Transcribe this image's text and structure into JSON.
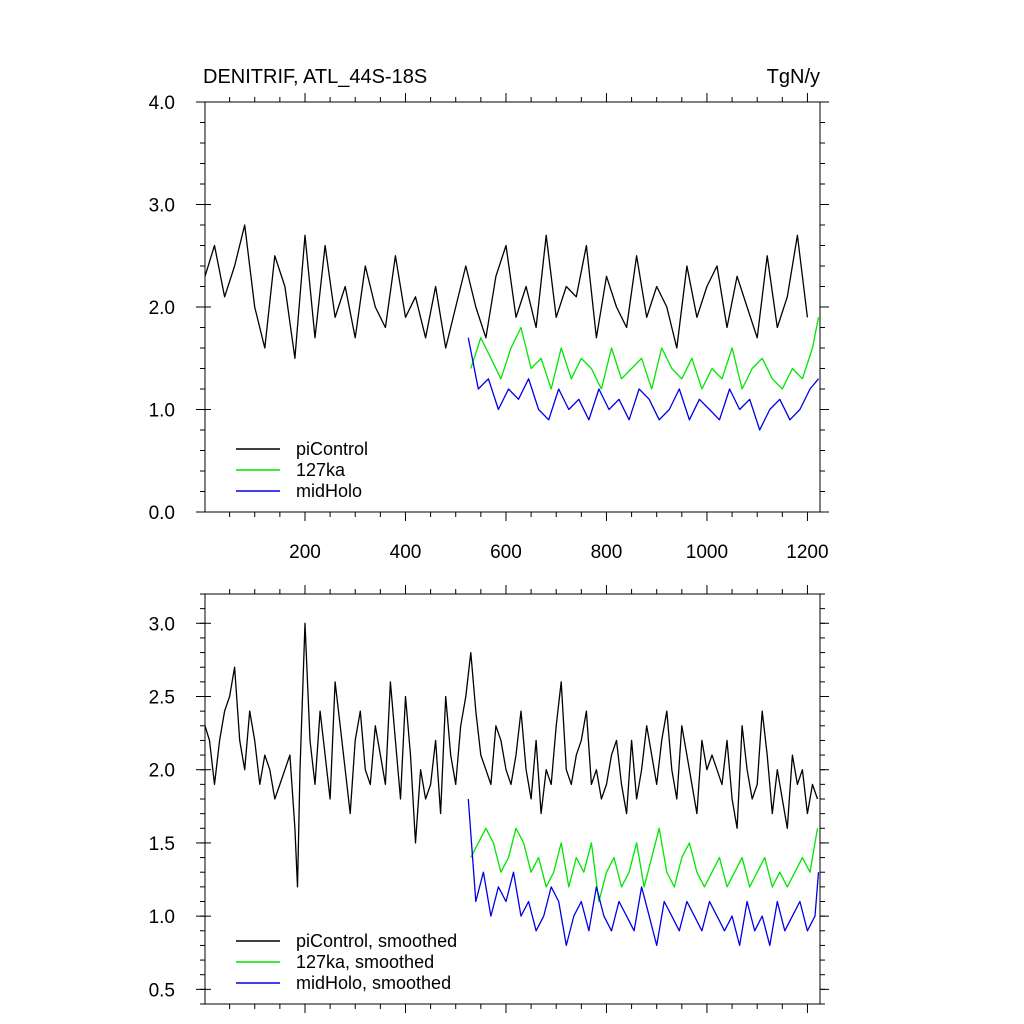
{
  "chart_data": [
    {
      "type": "line",
      "title": "DENITRIF, ATL_44S-18S",
      "units": "TgN/y",
      "xlim": [
        1,
        1225
      ],
      "ylim": [
        0,
        4
      ],
      "x_ticks": [
        200,
        400,
        600,
        800,
        1000,
        1200
      ],
      "x_tick_labels": [
        "200",
        "400",
        "600",
        "800",
        "1000",
        "1200"
      ],
      "y_ticks": [
        0,
        1,
        2,
        3,
        4
      ],
      "y_tick_labels": [
        "0.0",
        "1.0",
        "2.0",
        "3.0",
        "4.0"
      ],
      "legend_position": "bottom-left",
      "series": [
        {
          "name": "piControl",
          "color": "#000000",
          "x": [
            1,
            20,
            40,
            60,
            80,
            100,
            120,
            140,
            160,
            180,
            200,
            220,
            240,
            260,
            280,
            300,
            320,
            340,
            360,
            380,
            400,
            420,
            440,
            460,
            480,
            500,
            520,
            540,
            560,
            580,
            600,
            620,
            640,
            660,
            680,
            700,
            720,
            740,
            760,
            780,
            800,
            820,
            840,
            860,
            880,
            900,
            920,
            940,
            960,
            980,
            1000,
            1020,
            1040,
            1060,
            1080,
            1100,
            1120,
            1140,
            1160,
            1180,
            1200
          ],
          "y": [
            2.3,
            2.6,
            2.1,
            2.4,
            2.8,
            2.0,
            1.6,
            2.5,
            2.2,
            1.5,
            2.7,
            1.7,
            2.6,
            1.9,
            2.2,
            1.7,
            2.4,
            2.0,
            1.8,
            2.5,
            1.9,
            2.1,
            1.7,
            2.2,
            1.6,
            2.0,
            2.4,
            2.0,
            1.7,
            2.3,
            2.6,
            1.9,
            2.2,
            1.8,
            2.7,
            1.9,
            2.2,
            2.1,
            2.6,
            1.7,
            2.3,
            2.0,
            1.8,
            2.5,
            1.9,
            2.2,
            2.0,
            1.6,
            2.4,
            1.9,
            2.2,
            2.4,
            1.8,
            2.3,
            2.0,
            1.7,
            2.5,
            1.8,
            2.1,
            2.7,
            1.9
          ]
        },
        {
          "name": "127ka",
          "color": "#00e600",
          "x": [
            530,
            550,
            570,
            590,
            610,
            630,
            650,
            670,
            690,
            710,
            730,
            750,
            770,
            790,
            810,
            830,
            850,
            870,
            890,
            910,
            930,
            950,
            970,
            990,
            1010,
            1030,
            1050,
            1070,
            1090,
            1110,
            1130,
            1150,
            1170,
            1190,
            1210,
            1222
          ],
          "y": [
            1.4,
            1.7,
            1.5,
            1.3,
            1.6,
            1.8,
            1.4,
            1.5,
            1.2,
            1.6,
            1.3,
            1.5,
            1.4,
            1.2,
            1.6,
            1.3,
            1.4,
            1.5,
            1.2,
            1.6,
            1.4,
            1.3,
            1.5,
            1.2,
            1.4,
            1.3,
            1.6,
            1.2,
            1.4,
            1.5,
            1.3,
            1.2,
            1.4,
            1.3,
            1.6,
            1.9
          ]
        },
        {
          "name": "midHolo",
          "color": "#0000e6",
          "x": [
            525,
            545,
            565,
            585,
            605,
            625,
            645,
            665,
            685,
            705,
            725,
            745,
            765,
            785,
            805,
            825,
            845,
            865,
            885,
            905,
            925,
            945,
            965,
            985,
            1005,
            1025,
            1045,
            1065,
            1085,
            1105,
            1125,
            1145,
            1165,
            1185,
            1205,
            1222
          ],
          "y": [
            1.7,
            1.2,
            1.3,
            1.0,
            1.2,
            1.1,
            1.3,
            1.0,
            0.9,
            1.2,
            1.0,
            1.1,
            0.9,
            1.2,
            1.0,
            1.1,
            0.9,
            1.2,
            1.1,
            0.9,
            1.0,
            1.2,
            0.9,
            1.1,
            1.0,
            0.9,
            1.2,
            1.0,
            1.1,
            0.8,
            1.0,
            1.1,
            0.9,
            1.0,
            1.2,
            1.3
          ]
        }
      ]
    },
    {
      "type": "line",
      "xlim": [
        1,
        1225
      ],
      "ylim": [
        0.4,
        3.2
      ],
      "x_ticks": [
        200,
        400,
        600,
        800,
        1000,
        1200
      ],
      "y_ticks": [
        0.5,
        1.0,
        1.5,
        2.0,
        2.5,
        3.0
      ],
      "y_tick_labels": [
        "0.5",
        "1.0",
        "1.5",
        "2.0",
        "2.5",
        "3.0"
      ],
      "legend_position": "bottom-left",
      "series": [
        {
          "name": "piControl, smoothed",
          "color": "#000000",
          "x": [
            1,
            10,
            20,
            30,
            40,
            50,
            60,
            70,
            80,
            90,
            100,
            110,
            120,
            130,
            140,
            150,
            160,
            170,
            180,
            185,
            190,
            200,
            210,
            220,
            230,
            240,
            250,
            260,
            270,
            280,
            290,
            300,
            310,
            320,
            330,
            340,
            350,
            360,
            370,
            380,
            390,
            400,
            410,
            420,
            430,
            440,
            450,
            460,
            470,
            480,
            490,
            500,
            510,
            520,
            530,
            540,
            550,
            560,
            570,
            580,
            590,
            600,
            610,
            620,
            630,
            640,
            650,
            660,
            670,
            680,
            690,
            700,
            710,
            720,
            730,
            740,
            750,
            760,
            770,
            780,
            790,
            800,
            810,
            820,
            830,
            840,
            850,
            860,
            870,
            880,
            890,
            900,
            910,
            920,
            930,
            940,
            950,
            960,
            970,
            980,
            990,
            1000,
            1010,
            1020,
            1030,
            1040,
            1050,
            1060,
            1070,
            1080,
            1090,
            1100,
            1110,
            1120,
            1130,
            1140,
            1150,
            1160,
            1170,
            1180,
            1190,
            1200,
            1210,
            1220
          ],
          "y": [
            2.3,
            2.2,
            1.9,
            2.2,
            2.4,
            2.5,
            2.7,
            2.2,
            2.0,
            2.4,
            2.2,
            1.9,
            2.1,
            2.0,
            1.8,
            1.9,
            2.0,
            2.1,
            1.6,
            1.2,
            2.0,
            3.0,
            2.2,
            1.9,
            2.4,
            2.1,
            1.8,
            2.6,
            2.3,
            2.0,
            1.7,
            2.2,
            2.4,
            2.0,
            1.9,
            2.3,
            2.1,
            1.9,
            2.6,
            2.2,
            1.8,
            2.5,
            2.1,
            1.5,
            2.0,
            1.8,
            1.9,
            2.2,
            1.7,
            2.5,
            2.1,
            1.9,
            2.3,
            2.5,
            2.8,
            2.4,
            2.1,
            2.0,
            1.9,
            2.3,
            2.2,
            2.0,
            1.9,
            2.1,
            2.4,
            2.0,
            1.8,
            2.2,
            1.7,
            2.0,
            1.9,
            2.3,
            2.6,
            2.0,
            1.9,
            2.1,
            2.2,
            2.4,
            1.9,
            2.0,
            1.8,
            1.9,
            2.1,
            2.2,
            1.9,
            1.7,
            2.2,
            1.8,
            2.0,
            2.3,
            2.1,
            1.9,
            2.2,
            2.4,
            2.0,
            1.8,
            2.3,
            2.1,
            1.9,
            1.7,
            2.2,
            2.0,
            2.1,
            2.0,
            1.9,
            2.2,
            1.8,
            1.6,
            2.3,
            2.0,
            1.8,
            1.9,
            2.4,
            2.1,
            1.7,
            2.0,
            1.8,
            1.6,
            2.1,
            1.9,
            2.0,
            1.7,
            1.9,
            1.8
          ]
        },
        {
          "name": "127ka, smoothed",
          "color": "#00e600",
          "x": [
            530,
            545,
            560,
            575,
            590,
            605,
            620,
            635,
            650,
            665,
            680,
            695,
            710,
            725,
            740,
            755,
            770,
            785,
            800,
            815,
            830,
            845,
            860,
            875,
            890,
            905,
            920,
            935,
            950,
            965,
            980,
            995,
            1010,
            1025,
            1040,
            1055,
            1070,
            1085,
            1100,
            1115,
            1130,
            1145,
            1160,
            1175,
            1190,
            1205,
            1220
          ],
          "y": [
            1.4,
            1.5,
            1.6,
            1.5,
            1.3,
            1.4,
            1.6,
            1.5,
            1.3,
            1.4,
            1.2,
            1.3,
            1.5,
            1.2,
            1.4,
            1.3,
            1.5,
            1.1,
            1.3,
            1.4,
            1.2,
            1.3,
            1.5,
            1.2,
            1.4,
            1.6,
            1.3,
            1.2,
            1.4,
            1.5,
            1.3,
            1.2,
            1.3,
            1.4,
            1.2,
            1.3,
            1.4,
            1.2,
            1.3,
            1.4,
            1.2,
            1.3,
            1.2,
            1.3,
            1.4,
            1.3,
            1.6
          ]
        },
        {
          "name": "midHolo, smoothed",
          "color": "#0000e6",
          "x": [
            525,
            540,
            555,
            570,
            585,
            600,
            615,
            630,
            645,
            660,
            675,
            690,
            705,
            720,
            735,
            750,
            765,
            780,
            795,
            810,
            825,
            840,
            855,
            870,
            885,
            900,
            915,
            930,
            945,
            960,
            975,
            990,
            1005,
            1020,
            1035,
            1050,
            1065,
            1080,
            1095,
            1110,
            1125,
            1140,
            1155,
            1170,
            1185,
            1200,
            1215,
            1222
          ],
          "y": [
            1.8,
            1.1,
            1.3,
            1.0,
            1.2,
            1.1,
            1.3,
            1.0,
            1.1,
            0.9,
            1.0,
            1.2,
            1.1,
            0.8,
            1.0,
            1.1,
            0.9,
            1.2,
            1.0,
            0.9,
            1.1,
            1.0,
            0.9,
            1.2,
            1.0,
            0.8,
            1.1,
            1.0,
            0.9,
            1.1,
            1.0,
            0.9,
            1.1,
            1.0,
            0.9,
            1.0,
            0.8,
            1.1,
            0.9,
            1.0,
            0.8,
            1.1,
            0.9,
            1.0,
            1.1,
            0.9,
            1.0,
            1.3
          ]
        }
      ]
    }
  ]
}
